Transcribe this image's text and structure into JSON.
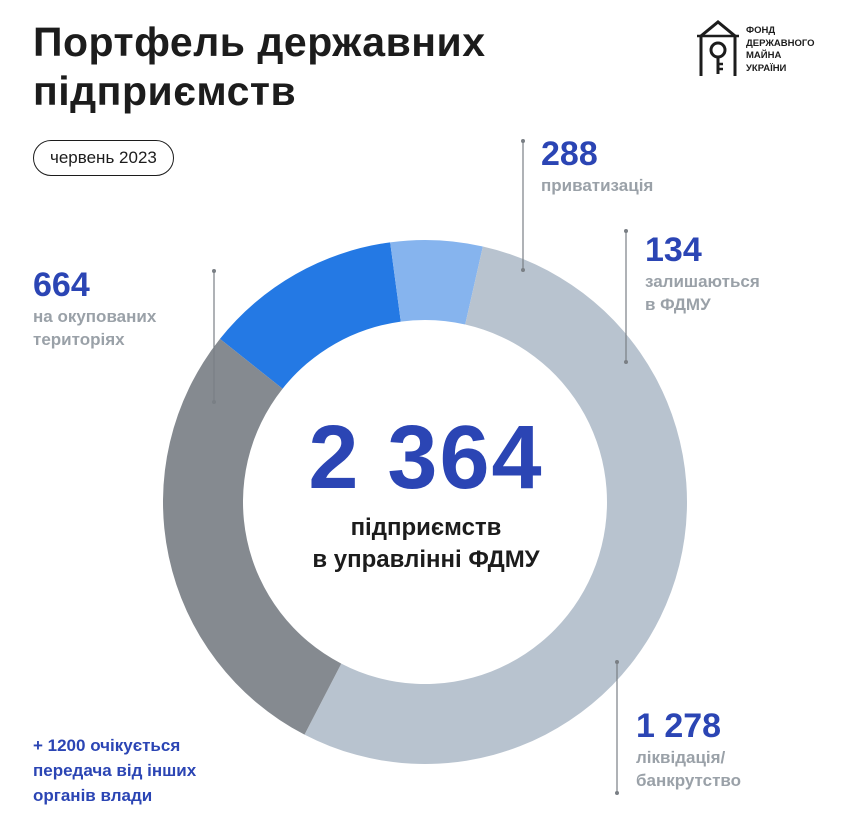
{
  "title": [
    "Портфель державних",
    "підприємств"
  ],
  "date_badge": "червень 2023",
  "logo": {
    "icon": "fdmu-logo-icon",
    "lines": [
      "ФОНД",
      "ДЕРЖАВНОГО",
      "МАЙНА",
      "УКРАЇНИ"
    ]
  },
  "colors": {
    "accent": "#2b45b4",
    "privatization": "#2479e4",
    "remain": "#86b4ee",
    "liquidation": "#b8c3cf",
    "occupied": "#858a90",
    "label_gray": "#9aa1a8"
  },
  "chart_data": {
    "type": "pie",
    "donut": true,
    "total": "2 364",
    "total_caption": [
      "підприємств",
      "в управлінні ФДМУ"
    ],
    "slices": [
      {
        "value": 288,
        "display": "288",
        "label": [
          "приватизація"
        ],
        "color": "#2479e4"
      },
      {
        "value": 134,
        "display": "134",
        "label": [
          "залишаються",
          "в ФДМУ"
        ],
        "color": "#86b4ee"
      },
      {
        "value": 1278,
        "display": "1 278",
        "label": [
          "ліквідація/",
          "банкрутство"
        ],
        "color": "#b8c3cf"
      },
      {
        "value": 664,
        "display": "664",
        "label": [
          "на окупованих",
          "територіях"
        ],
        "color": "#858a90"
      }
    ]
  },
  "note": [
    "+ 1200 очікується",
    "передача від інших",
    "органів влади"
  ]
}
